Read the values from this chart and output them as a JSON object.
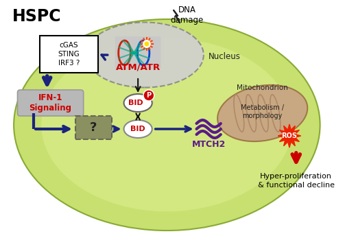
{
  "title": "HSPC",
  "bg_color": "#ffffff",
  "cell_color_inner": "#d4e87a",
  "cell_color_outer": "#b8d855",
  "cell_border": "#88aa33",
  "nucleus_color": "#cccccc",
  "mito_color": "#c8a882",
  "mito_border": "#a07848",
  "arrow_dark_blue": "#1a237e",
  "arrow_black": "#111111",
  "arrow_red": "#cc0000",
  "red_color": "#cc0000",
  "purple_color": "#5b1a8a",
  "gray_qbox": "#8a9060",
  "text_atmatr": "ATM/ATR",
  "text_nucleus": "Nucleus",
  "text_mito": "Mitochondrion",
  "text_metab": "Metabolism /\nmorphology",
  "text_dna": "DNA\ndamage",
  "text_output": "Hyper-proliferation\n& functional decline",
  "text_cgas": "cGAS\nSTING\nIRF3 ?",
  "text_ifn": "IFN-1\nSignaling",
  "text_ros": "ROS",
  "text_mtch2": "MTCH2"
}
